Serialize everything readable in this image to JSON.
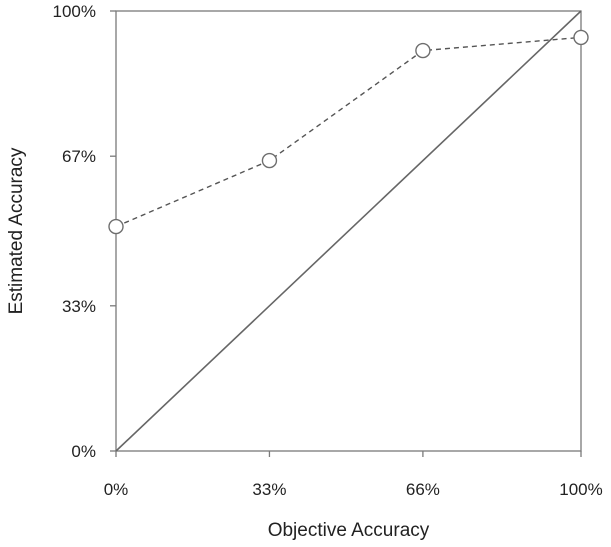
{
  "chart_data": {
    "type": "line",
    "title": "",
    "xlabel": "Objective Accuracy",
    "ylabel": "Estimated Accuracy",
    "x_ticks": [
      {
        "value": 0,
        "label": "0%"
      },
      {
        "value": 33,
        "label": "33%"
      },
      {
        "value": 66,
        "label": "66%"
      },
      {
        "value": 100,
        "label": "100%"
      }
    ],
    "y_ticks": [
      {
        "value": 0,
        "label": "0%"
      },
      {
        "value": 33,
        "label": "33%"
      },
      {
        "value": 67,
        "label": "67%"
      },
      {
        "value": 100,
        "label": "100%"
      }
    ],
    "xlim": [
      0,
      100
    ],
    "ylim": [
      0,
      100
    ],
    "grid": false,
    "legend": "none",
    "series": [
      {
        "style": "dashed",
        "marker": "open-circle",
        "color": "#555555",
        "points": [
          {
            "x": 0,
            "y": 51
          },
          {
            "x": 33,
            "y": 66
          },
          {
            "x": 66,
            "y": 91
          },
          {
            "x": 100,
            "y": 94
          }
        ]
      },
      {
        "style": "solid",
        "marker": "none",
        "color": "#666666",
        "points": [
          {
            "x": 0,
            "y": 0
          },
          {
            "x": 100,
            "y": 100
          }
        ]
      }
    ]
  }
}
